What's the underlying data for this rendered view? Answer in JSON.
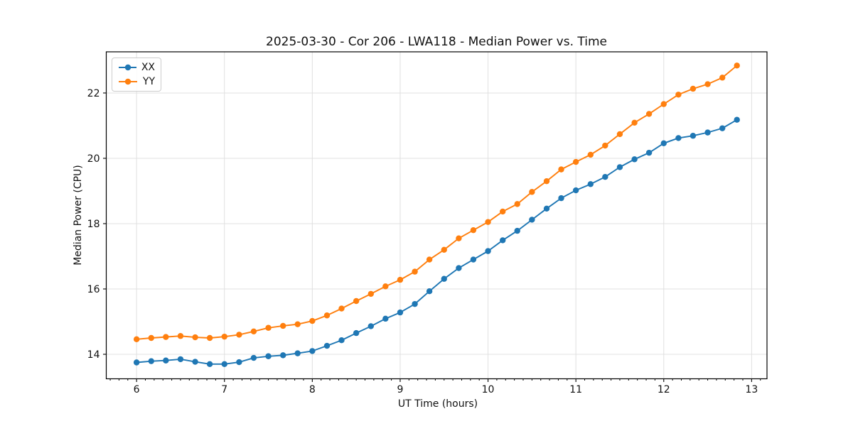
{
  "chart_data": {
    "type": "line",
    "title": "2025-03-30 - Cor 206 - LWA118 - Median Power vs. Time",
    "xlabel": "UT Time (hours)",
    "ylabel": "Median Power (CPU)",
    "xlim": [
      5.655,
      13.175
    ],
    "ylim": [
      13.25,
      23.26
    ],
    "xticks": [
      6,
      7,
      8,
      9,
      10,
      11,
      12,
      13
    ],
    "yticks": [
      14,
      16,
      18,
      20,
      22
    ],
    "x_minor_tick_step": 0.1,
    "grid": true,
    "grid_color": "#e0e0e0",
    "legend": {
      "location": "upper left"
    },
    "x": [
      6.0,
      6.167,
      6.333,
      6.5,
      6.667,
      6.833,
      7.0,
      7.167,
      7.333,
      7.5,
      7.667,
      7.833,
      8.0,
      8.167,
      8.333,
      8.5,
      8.667,
      8.833,
      9.0,
      9.167,
      9.333,
      9.5,
      9.667,
      9.833,
      10.0,
      10.167,
      10.333,
      10.5,
      10.667,
      10.833,
      11.0,
      11.167,
      11.333,
      11.5,
      11.667,
      11.833,
      12.0,
      12.167,
      12.333,
      12.5,
      12.667,
      12.833
    ],
    "series": [
      {
        "name": "XX",
        "color": "#1f77b4",
        "marker": "circle",
        "values": [
          13.75,
          13.79,
          13.81,
          13.85,
          13.77,
          13.7,
          13.7,
          13.76,
          13.89,
          13.94,
          13.97,
          14.03,
          14.1,
          14.26,
          14.43,
          14.65,
          14.86,
          15.09,
          15.28,
          15.54,
          15.93,
          16.31,
          16.64,
          16.9,
          17.16,
          17.49,
          17.78,
          18.12,
          18.46,
          18.78,
          19.02,
          19.21,
          19.43,
          19.73,
          19.97,
          20.17,
          20.46,
          20.62,
          20.69,
          20.79,
          20.92,
          21.18
        ]
      },
      {
        "name": "YY",
        "color": "#ff7f0e",
        "marker": "circle",
        "values": [
          14.46,
          14.5,
          14.53,
          14.56,
          14.52,
          14.5,
          14.54,
          14.6,
          14.7,
          14.81,
          14.87,
          14.92,
          15.02,
          15.19,
          15.4,
          15.63,
          15.85,
          16.08,
          16.28,
          16.53,
          16.9,
          17.2,
          17.55,
          17.8,
          18.05,
          18.37,
          18.6,
          18.97,
          19.3,
          19.66,
          19.89,
          20.11,
          20.39,
          20.74,
          21.09,
          21.36,
          21.66,
          21.95,
          22.13,
          22.27,
          22.47,
          22.84
        ]
      }
    ]
  }
}
